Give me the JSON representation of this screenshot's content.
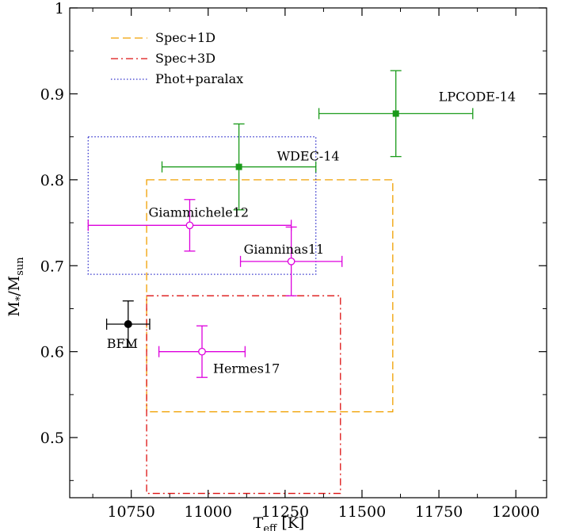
{
  "chart_data": {
    "type": "scatter",
    "title": "",
    "xlabel": "T_eff [K]",
    "ylabel": "M_*/M_sun",
    "xlim": [
      10550,
      12100
    ],
    "ylim": [
      0.43,
      1.0
    ],
    "x_ticks": [
      10750,
      11000,
      11250,
      11500,
      11750,
      12000
    ],
    "y_ticks": [
      0.5,
      0.6,
      0.7,
      0.8,
      0.9,
      1.0
    ],
    "x_tick_labels": [
      "10750",
      "11000",
      "11250",
      "11500",
      "11750",
      "12000"
    ],
    "y_tick_labels": [
      "0.5",
      "0.6",
      "0.7",
      "0.8",
      "0.9",
      "1"
    ],
    "legend_position": "top-left",
    "regions": [
      {
        "name": "Spec+1D",
        "color": "#f0a000",
        "dash": "dashed",
        "x": [
          10800,
          11600
        ],
        "y": [
          0.53,
          0.8
        ]
      },
      {
        "name": "Spec+3D",
        "color": "#dd1111",
        "dash": "dashdot",
        "x": [
          10800,
          11430
        ],
        "y": [
          0.435,
          0.665
        ]
      },
      {
        "name": "Phot+paralax",
        "color": "#3333cc",
        "dash": "dotted",
        "x": [
          10610,
          11350
        ],
        "y": [
          0.69,
          0.85
        ]
      }
    ],
    "points": [
      {
        "label": "LPCODE-14",
        "x": 11610,
        "y": 0.877,
        "xerr": [
          250,
          250
        ],
        "yerr": [
          0.05,
          0.05
        ],
        "color": "#1a9a1a",
        "marker": "square"
      },
      {
        "label": "WDEC-14",
        "x": 11100,
        "y": 0.815,
        "xerr": [
          250,
          250
        ],
        "yerr": [
          0.05,
          0.05
        ],
        "color": "#1a9a1a",
        "marker": "square"
      },
      {
        "label": "Giammichele12",
        "x": 10940,
        "y": 0.747,
        "xerr": [
          330,
          330
        ],
        "yerr": [
          0.03,
          0.03
        ],
        "color": "#dd00dd",
        "marker": "open-circle"
      },
      {
        "label": "Gianninas11",
        "x": 11270,
        "y": 0.705,
        "xerr": [
          165,
          165
        ],
        "yerr": [
          0.04,
          0.04
        ],
        "color": "#dd00dd",
        "marker": "open-circle"
      },
      {
        "label": "Hermes17",
        "x": 10980,
        "y": 0.6,
        "xerr": [
          140,
          140
        ],
        "yerr": [
          0.03,
          0.03
        ],
        "color": "#dd00dd",
        "marker": "open-circle"
      },
      {
        "label": "BFM",
        "x": 10740,
        "y": 0.632,
        "xerr": [
          70,
          70
        ],
        "yerr": [
          0.027,
          0.027
        ],
        "color": "#000000",
        "marker": "filled-circle"
      }
    ]
  }
}
